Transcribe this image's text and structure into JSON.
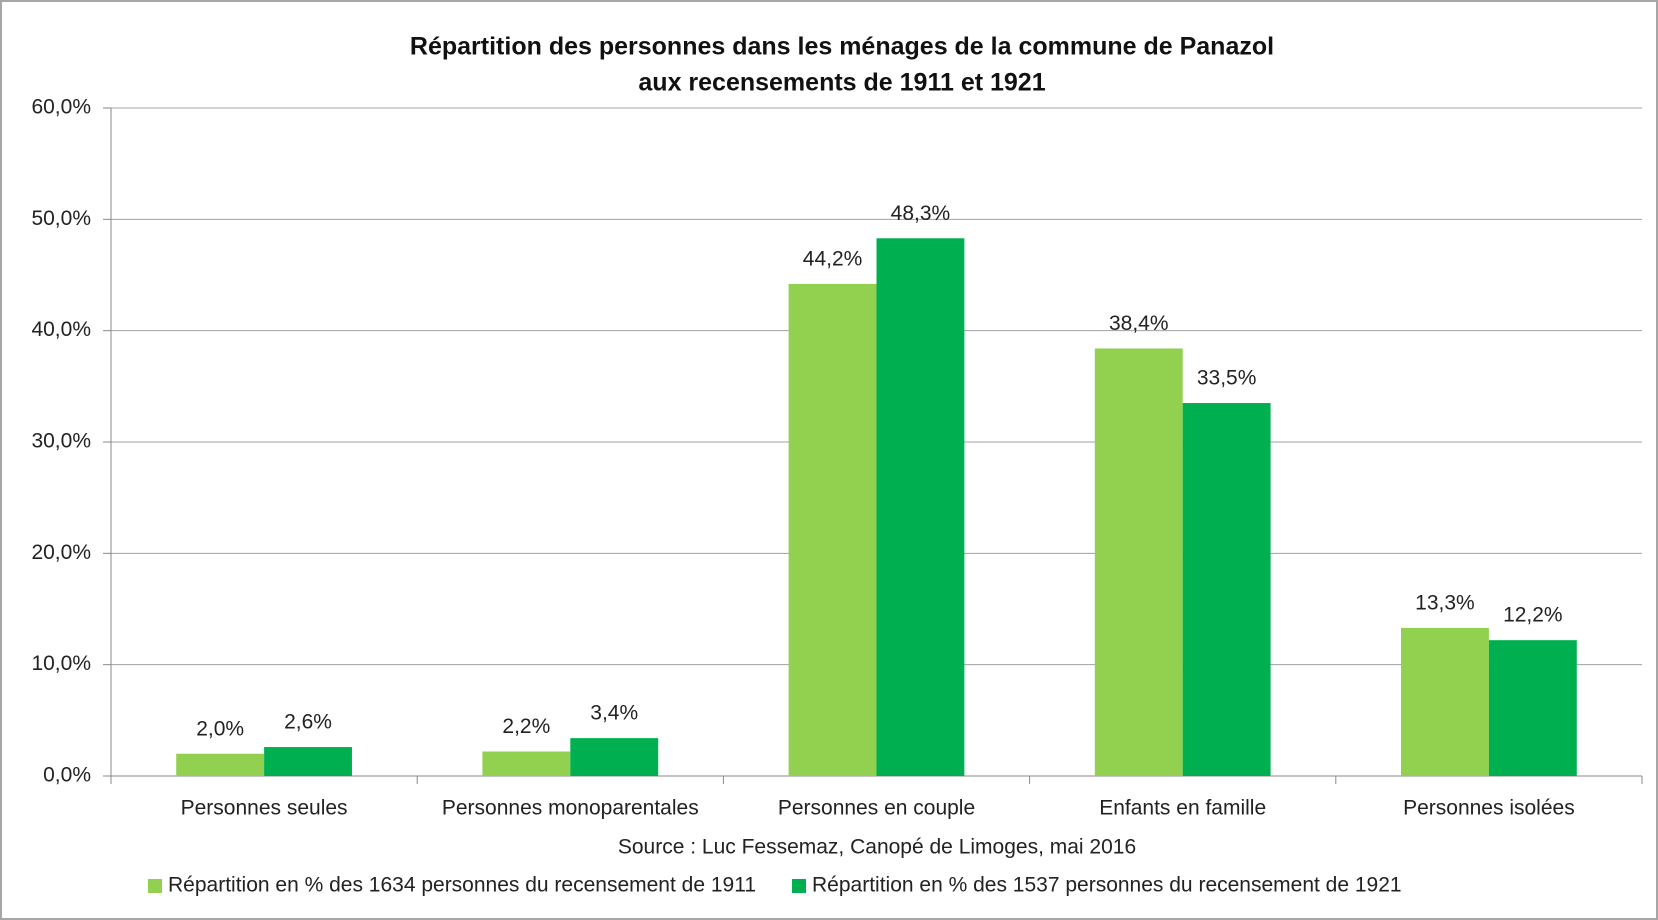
{
  "chart_data": {
    "type": "bar",
    "title": [
      "Répartition des personnes dans les ménages de la commune de Panazol",
      "aux recensements de 1911 et 1921"
    ],
    "source": "Source : Luc Fessemaz, Canopé de Limoges, mai 2016",
    "categories": [
      "Personnes seules",
      "Personnes monoparentales",
      "Personnes en couple",
      "Enfants en famille",
      "Personnes isolées"
    ],
    "series": [
      {
        "name": "Répartition en % des 1634 personnes du recensement de 1911",
        "color": "#92d050",
        "values": [
          2.0,
          2.2,
          44.2,
          38.4,
          13.3
        ],
        "value_labels": [
          "2,0%",
          "2,2%",
          "44,2%",
          "38,4%",
          "13,3%"
        ]
      },
      {
        "name": "Répartition en % des 1537 personnes du recensement de 1921",
        "color": "#00b050",
        "values": [
          2.6,
          3.4,
          48.3,
          33.5,
          12.2
        ],
        "value_labels": [
          "2,6%",
          "3,4%",
          "48,3%",
          "33,5%",
          "12,2%"
        ]
      }
    ],
    "ylim": [
      0,
      60
    ],
    "yticks": [
      {
        "value": 0,
        "label": "0,0%"
      },
      {
        "value": 10,
        "label": "10,0%"
      },
      {
        "value": 20,
        "label": "20,0%"
      },
      {
        "value": 30,
        "label": "30,0%"
      },
      {
        "value": 40,
        "label": "40,0%"
      },
      {
        "value": 50,
        "label": "50,0%"
      },
      {
        "value": 60,
        "label": "60,0%"
      }
    ],
    "grid": true,
    "legend": "bottom"
  }
}
